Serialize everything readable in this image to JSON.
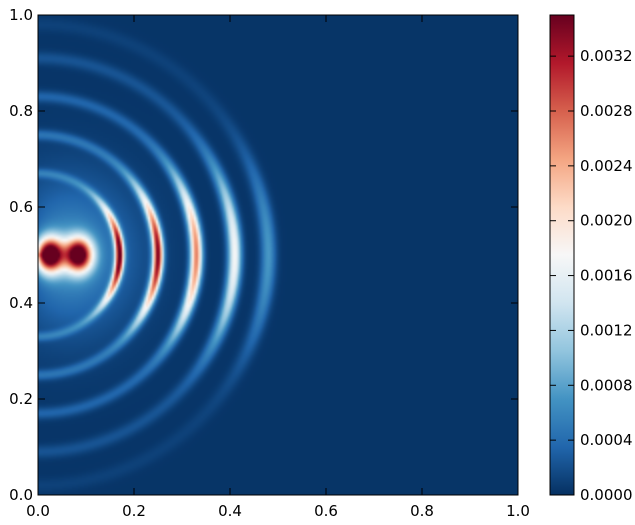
{
  "chart_data": {
    "type": "heatmap",
    "title": "",
    "xlabel": "",
    "ylabel": "",
    "xlim": [
      0.0,
      1.0
    ],
    "ylim": [
      0.0,
      1.0
    ],
    "x_ticks": [
      "0.0",
      "0.2",
      "0.4",
      "0.6",
      "0.8",
      "1.0"
    ],
    "y_ticks": [
      "0.0",
      "0.2",
      "0.4",
      "0.6",
      "0.8",
      "1.0"
    ],
    "grid": false,
    "colormap": "RdBu_r",
    "colorbar": {
      "range": [
        0.0,
        0.0035
      ],
      "ticks": [
        "0.0000",
        "0.0004",
        "0.0008",
        "0.0012",
        "0.0016",
        "0.0020",
        "0.0024",
        "0.0028",
        "0.0032"
      ]
    },
    "field": {
      "source": [
        0.0,
        0.5
      ],
      "background_value": 3e-05,
      "rings": [
        {
          "radius": 0.17,
          "peak_value": 0.0034
        },
        {
          "radius": 0.25,
          "peak_value": 0.0033
        },
        {
          "radius": 0.33,
          "peak_value": 0.0026
        },
        {
          "radius": 0.41,
          "peak_value": 0.0017
        },
        {
          "radius": 0.48,
          "peak_value": 0.0007
        }
      ],
      "near_source_peak_value": 0.0035
    },
    "colors": {
      "low": "#053061",
      "mid": "#f7f7f7",
      "high": "#67001f"
    }
  }
}
